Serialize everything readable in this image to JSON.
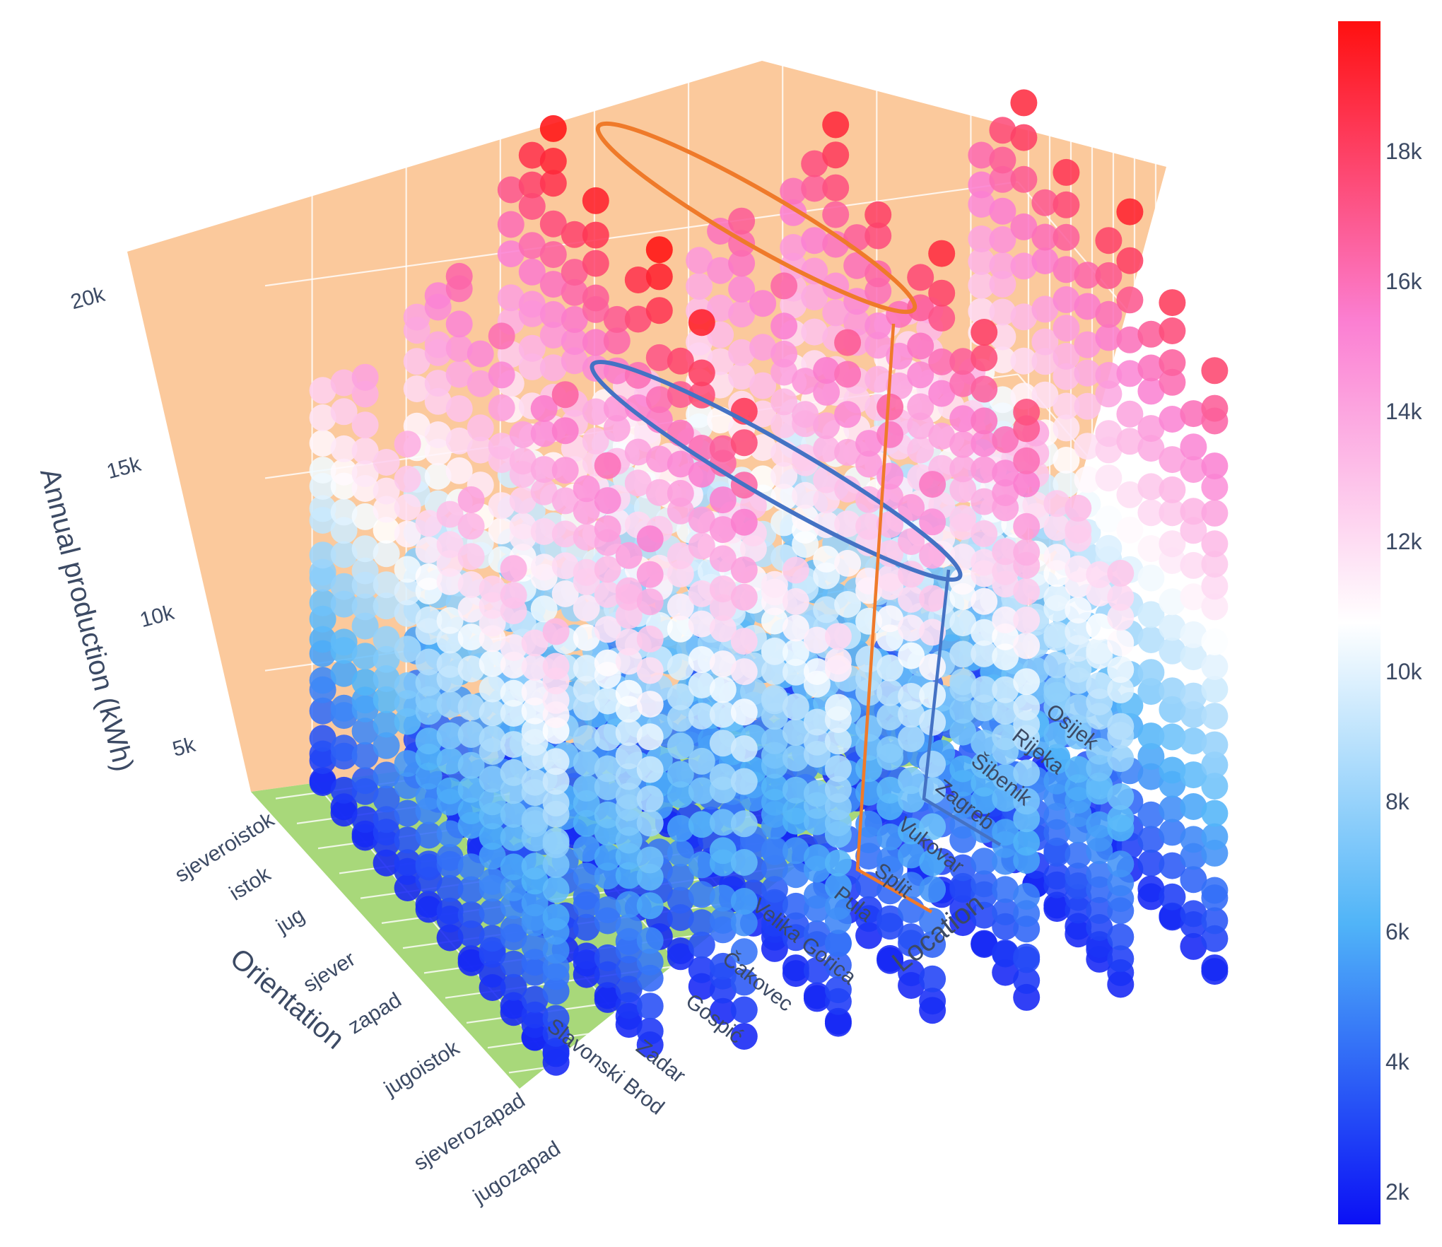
{
  "chart_data": {
    "type": "scatter3d",
    "title": "",
    "zlabel": "Annual production (kWh)",
    "xlabel": "Orientation",
    "ylabel": "Location",
    "zlim": [
      2000,
      20000
    ],
    "z_ticks": [
      "5k",
      "10k",
      "15k",
      "20k"
    ],
    "z_tick_values": [
      5000,
      10000,
      15000,
      20000
    ],
    "orientations": [
      "sjeveroistok",
      "istok",
      "jug",
      "sjever",
      "zapad",
      "jugoistok",
      "sjeverozapad",
      "jugozapad"
    ],
    "locations": [
      "Slavonski Brod",
      "Zadar",
      "Gospić",
      "Čakovec",
      "Velika Gorica",
      "Pula",
      "Split",
      "Vukovar",
      "Zagreb",
      "Šibenik",
      "Rijeka",
      "Osijek"
    ],
    "colorbar": {
      "ticks": [
        "2k",
        "4k",
        "6k",
        "8k",
        "10k",
        "12k",
        "14k",
        "16k",
        "18k"
      ],
      "tick_values": [
        2000,
        4000,
        6000,
        8000,
        10000,
        12000,
        14000,
        16000,
        18000
      ],
      "range": [
        1500,
        20000
      ],
      "colorscale": [
        "#0b10f5",
        "#50b4f8",
        "#ffffff",
        "#fb7fd2",
        "#ff1010"
      ]
    },
    "annotations": [
      {
        "label": "Split",
        "marker": "orange ellipse",
        "level": 19000
      },
      {
        "label": "Zagreb",
        "marker": "blue ellipse",
        "level": 11500
      }
    ],
    "colors": {
      "back_walls": "#fbc99c",
      "floor": "#a8d87a",
      "split_highlight": "#ef7a2a",
      "zagreb_highlight": "#4472c4"
    }
  }
}
